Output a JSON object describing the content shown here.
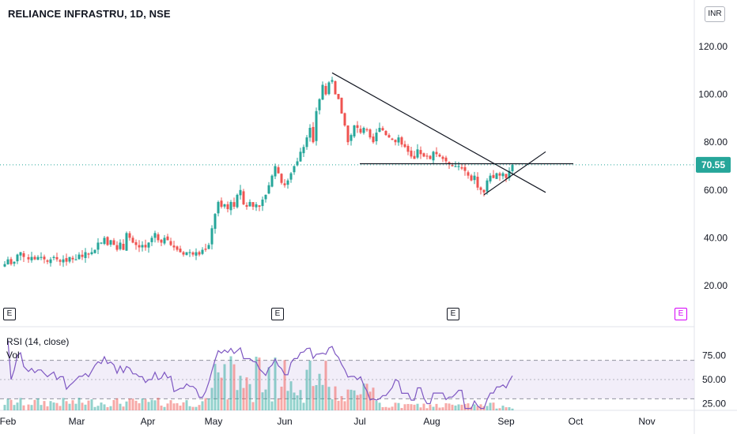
{
  "chart_data": {
    "type": "candlestick",
    "symbol": "RELIANCE INFRASTRU, 1D, NSE",
    "currency": "INR",
    "last_price": "70.55",
    "price_axis": {
      "ticks": [
        "120.00",
        "100.00",
        "80.00",
        "60.00",
        "40.00",
        "20.00"
      ],
      "tick_values": [
        120,
        100,
        80,
        60,
        40,
        20
      ]
    },
    "x_axis": {
      "labels": [
        "Feb",
        "Mar",
        "Apr",
        "May",
        "Jun",
        "Jul",
        "Aug",
        "Sep",
        "Oct",
        "Nov"
      ]
    },
    "price_path": [
      [
        0,
        28
      ],
      [
        6,
        29
      ],
      [
        10,
        31
      ],
      [
        14,
        29
      ],
      [
        18,
        30
      ],
      [
        22,
        33
      ],
      [
        26,
        34
      ],
      [
        30,
        32
      ],
      [
        36,
        31
      ],
      [
        40,
        32
      ],
      [
        44,
        31
      ],
      [
        48,
        32
      ],
      [
        52,
        32
      ],
      [
        56,
        31
      ],
      [
        60,
        30
      ],
      [
        64,
        31
      ],
      [
        68,
        32
      ],
      [
        72,
        31
      ],
      [
        76,
        30
      ],
      [
        80,
        31
      ],
      [
        84,
        30
      ],
      [
        88,
        32
      ],
      [
        92,
        31
      ],
      [
        96,
        31
      ],
      [
        100,
        33
      ],
      [
        104,
        32
      ],
      [
        108,
        34
      ],
      [
        112,
        33
      ],
      [
        116,
        34
      ],
      [
        120,
        35
      ],
      [
        124,
        38
      ],
      [
        128,
        38
      ],
      [
        132,
        40
      ],
      [
        136,
        37
      ],
      [
        140,
        39
      ],
      [
        144,
        37
      ],
      [
        148,
        35
      ],
      [
        152,
        38
      ],
      [
        156,
        35
      ],
      [
        160,
        42
      ],
      [
        164,
        40
      ],
      [
        168,
        38
      ],
      [
        172,
        37
      ],
      [
        176,
        36
      ],
      [
        180,
        37
      ],
      [
        184,
        36
      ],
      [
        188,
        38
      ],
      [
        192,
        40
      ],
      [
        196,
        42
      ],
      [
        200,
        39
      ],
      [
        204,
        38
      ],
      [
        208,
        40
      ],
      [
        212,
        39
      ],
      [
        216,
        37
      ],
      [
        220,
        36
      ],
      [
        224,
        35
      ],
      [
        228,
        34
      ],
      [
        232,
        33
      ],
      [
        236,
        34
      ],
      [
        240,
        34
      ],
      [
        244,
        33
      ],
      [
        248,
        34
      ],
      [
        252,
        33
      ],
      [
        256,
        35
      ],
      [
        260,
        35
      ],
      [
        264,
        37
      ],
      [
        268,
        44
      ],
      [
        272,
        50
      ],
      [
        276,
        55
      ],
      [
        280,
        53
      ],
      [
        284,
        54
      ],
      [
        288,
        52
      ],
      [
        292,
        55
      ],
      [
        296,
        53
      ],
      [
        300,
        58
      ],
      [
        304,
        60
      ],
      [
        308,
        54
      ],
      [
        312,
        53
      ],
      [
        316,
        55
      ],
      [
        320,
        53
      ],
      [
        324,
        54
      ],
      [
        328,
        53
      ],
      [
        332,
        56
      ],
      [
        336,
        58
      ],
      [
        340,
        62
      ],
      [
        344,
        66
      ],
      [
        348,
        70
      ],
      [
        352,
        67
      ],
      [
        356,
        63
      ],
      [
        360,
        62
      ],
      [
        364,
        64
      ],
      [
        368,
        67
      ],
      [
        372,
        70
      ],
      [
        376,
        72
      ],
      [
        380,
        76
      ],
      [
        384,
        78
      ],
      [
        388,
        82
      ],
      [
        392,
        86
      ],
      [
        396,
        80
      ],
      [
        400,
        93
      ],
      [
        404,
        98
      ],
      [
        408,
        104
      ],
      [
        412,
        100
      ],
      [
        416,
        105
      ],
      [
        420,
        106
      ],
      [
        424,
        100
      ],
      [
        428,
        98
      ],
      [
        432,
        92
      ],
      [
        436,
        87
      ],
      [
        440,
        80
      ],
      [
        444,
        83
      ],
      [
        448,
        87
      ],
      [
        452,
        86
      ],
      [
        456,
        84
      ],
      [
        460,
        86
      ],
      [
        464,
        85
      ],
      [
        468,
        82
      ],
      [
        472,
        80
      ],
      [
        476,
        84
      ],
      [
        480,
        86
      ],
      [
        484,
        85
      ],
      [
        488,
        83
      ],
      [
        492,
        82
      ],
      [
        496,
        81
      ],
      [
        500,
        80
      ],
      [
        504,
        82
      ],
      [
        508,
        79
      ],
      [
        512,
        78
      ],
      [
        516,
        76
      ],
      [
        520,
        74
      ],
      [
        524,
        73
      ],
      [
        528,
        77
      ],
      [
        532,
        75
      ],
      [
        536,
        74
      ],
      [
        540,
        74
      ],
      [
        544,
        73
      ],
      [
        548,
        76
      ],
      [
        552,
        75
      ],
      [
        556,
        74
      ],
      [
        560,
        73
      ],
      [
        564,
        72
      ],
      [
        568,
        71
      ],
      [
        572,
        70
      ],
      [
        576,
        70
      ],
      [
        580,
        70
      ],
      [
        584,
        69
      ],
      [
        588,
        68
      ],
      [
        592,
        66
      ],
      [
        596,
        64
      ],
      [
        600,
        66
      ],
      [
        604,
        61
      ],
      [
        608,
        60
      ],
      [
        612,
        59
      ],
      [
        616,
        64
      ],
      [
        620,
        66
      ],
      [
        624,
        65
      ],
      [
        628,
        67
      ],
      [
        632,
        66
      ],
      [
        636,
        67
      ],
      [
        640,
        65
      ],
      [
        644,
        68
      ],
      [
        648,
        70.55
      ]
    ],
    "rsi": {
      "label": "RSI (14, close)",
      "ticks": [
        "75.00",
        "50.00",
        "25.00"
      ],
      "tick_values": [
        75,
        50,
        25
      ],
      "upper": 70,
      "lower": 30
    },
    "volume_label": "Vol",
    "drawings": [
      {
        "type": "trendline",
        "from": [
          420,
          109
        ],
        "to": [
          690,
          59
        ]
      },
      {
        "type": "horizontal",
        "from": [
          455,
          71
        ],
        "to": [
          725,
          71
        ]
      },
      {
        "type": "trendline",
        "from": [
          612,
          58
        ],
        "to": [
          690,
          76
        ]
      }
    ],
    "earnings_labels": [
      "E",
      "E",
      "E",
      "E"
    ],
    "colors": {
      "up": "#26a69a",
      "down": "#ef5350",
      "price_line": "#26a69a",
      "rsi_line": "#7e57c2",
      "rsi_band": "#ede7f6"
    }
  }
}
